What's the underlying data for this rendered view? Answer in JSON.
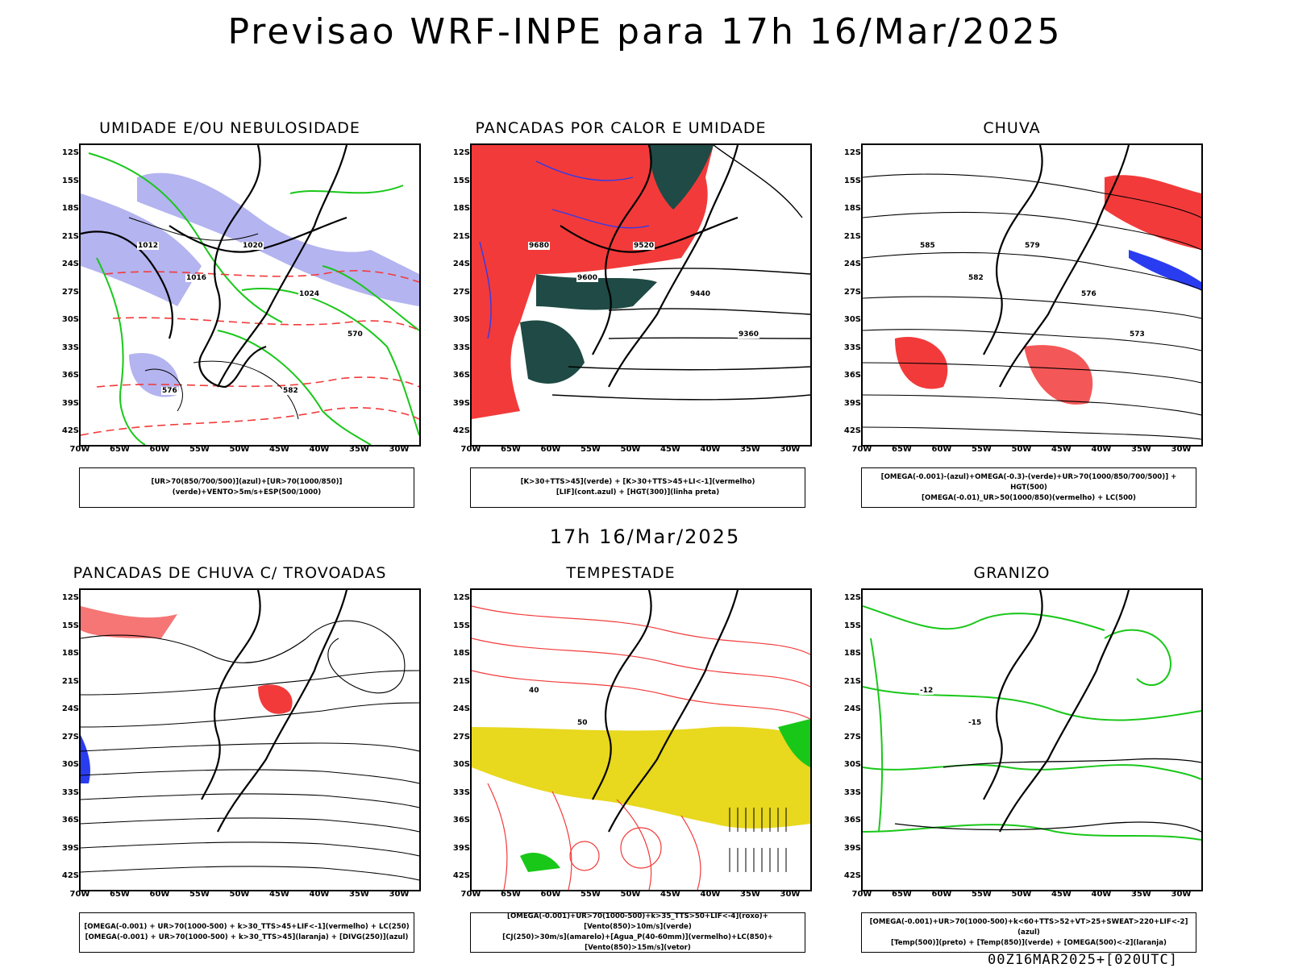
{
  "title": "Previsao WRF-INPE  para 17h 16/Mar/2025",
  "mid_title": "17h 16/Mar/2025",
  "footer": "00Z16MAR2025+[020UTC]",
  "lat_labels": [
    "12S",
    "15S",
    "18S",
    "21S",
    "24S",
    "27S",
    "30S",
    "33S",
    "36S",
    "39S",
    "42S"
  ],
  "lon_labels": [
    "70W",
    "65W",
    "60W",
    "55W",
    "50W",
    "45W",
    "40W",
    "35W",
    "30W"
  ],
  "colors": {
    "red": "#f23a3a",
    "green": "#19c719",
    "blue": "#2a3cf0",
    "lavender": "#b4b4f0",
    "darkteal": "#1f4a45",
    "yellow": "#e8d81e",
    "orange": "#f08020",
    "purple": "#9b2ff0"
  },
  "panels": [
    {
      "title": "UMIDADE E/OU NEBULOSIDADE",
      "legend": [
        "[UR>70(850/700/500)](azul)+[UR>70(1000/850)](verde)+VENTO>5m/s+ESP(500/1000)"
      ],
      "contour_labels": [
        "1012",
        "1016",
        "1020",
        "1024",
        "570",
        "576",
        "582"
      ]
    },
    {
      "title": "PANCADAS POR CALOR E UMIDADE",
      "legend": [
        "[K>30+TTS>45](verde) + [K>30+TTS>45+LI<-1](vermelho)",
        "[LIF](cont.azul) + [HGT(300)](linha preta)"
      ],
      "contour_labels": [
        "9680",
        "9600",
        "9520",
        "9440",
        "9360"
      ]
    },
    {
      "title": "CHUVA",
      "legend": [
        "[OMEGA(-0.001)-(azul)+OMEGA(-0.3)-(verde)+UR>70(1000/850/700/500)] + HGT(500)",
        "[OMEGA(-0.01)_UR>50(1000/850)(vermelho) + LC(500)"
      ],
      "contour_labels": [
        "585",
        "582",
        "579",
        "576",
        "573"
      ]
    },
    {
      "title": "PANCADAS DE CHUVA C/ TROVOADAS",
      "legend": [
        "[OMEGA(-0.001) + UR>70(1000-500) + k>30_TTS>45+LIF<-1](vermelho) + LC(250)",
        "[OMEGA(-0.001) + UR>70(1000-500) + k>30_TTS>45](laranja) + [DIVG(250)](azul)"
      ],
      "contour_labels": []
    },
    {
      "title": "TEMPESTADE",
      "legend": [
        "[OMEGA(-0.001)+UR>70(1000-500)+k>35_TTS>50+LIF<-4](roxo)+[Vento(850)>10m/s](verde)",
        "[CJ(250)>30m/s](amarelo)+[Agua_P(40-60mm)](vermelho)+LC(850)+[Vento(850)>15m/s](vetor)"
      ],
      "contour_labels": [
        "40",
        "50"
      ]
    },
    {
      "title": "GRANIZO",
      "legend": [
        "[OMEGA(-0.001)+UR>70(1000-500)+k<60+TTS>52+VT>25+SWEAT>220+LIF<-2](azul)",
        "[Temp(500)](preto) + [Temp(850)](verde) + [OMEGA(500)<-2](laranja)"
      ],
      "contour_labels": [
        "-12",
        "-15"
      ]
    }
  ]
}
